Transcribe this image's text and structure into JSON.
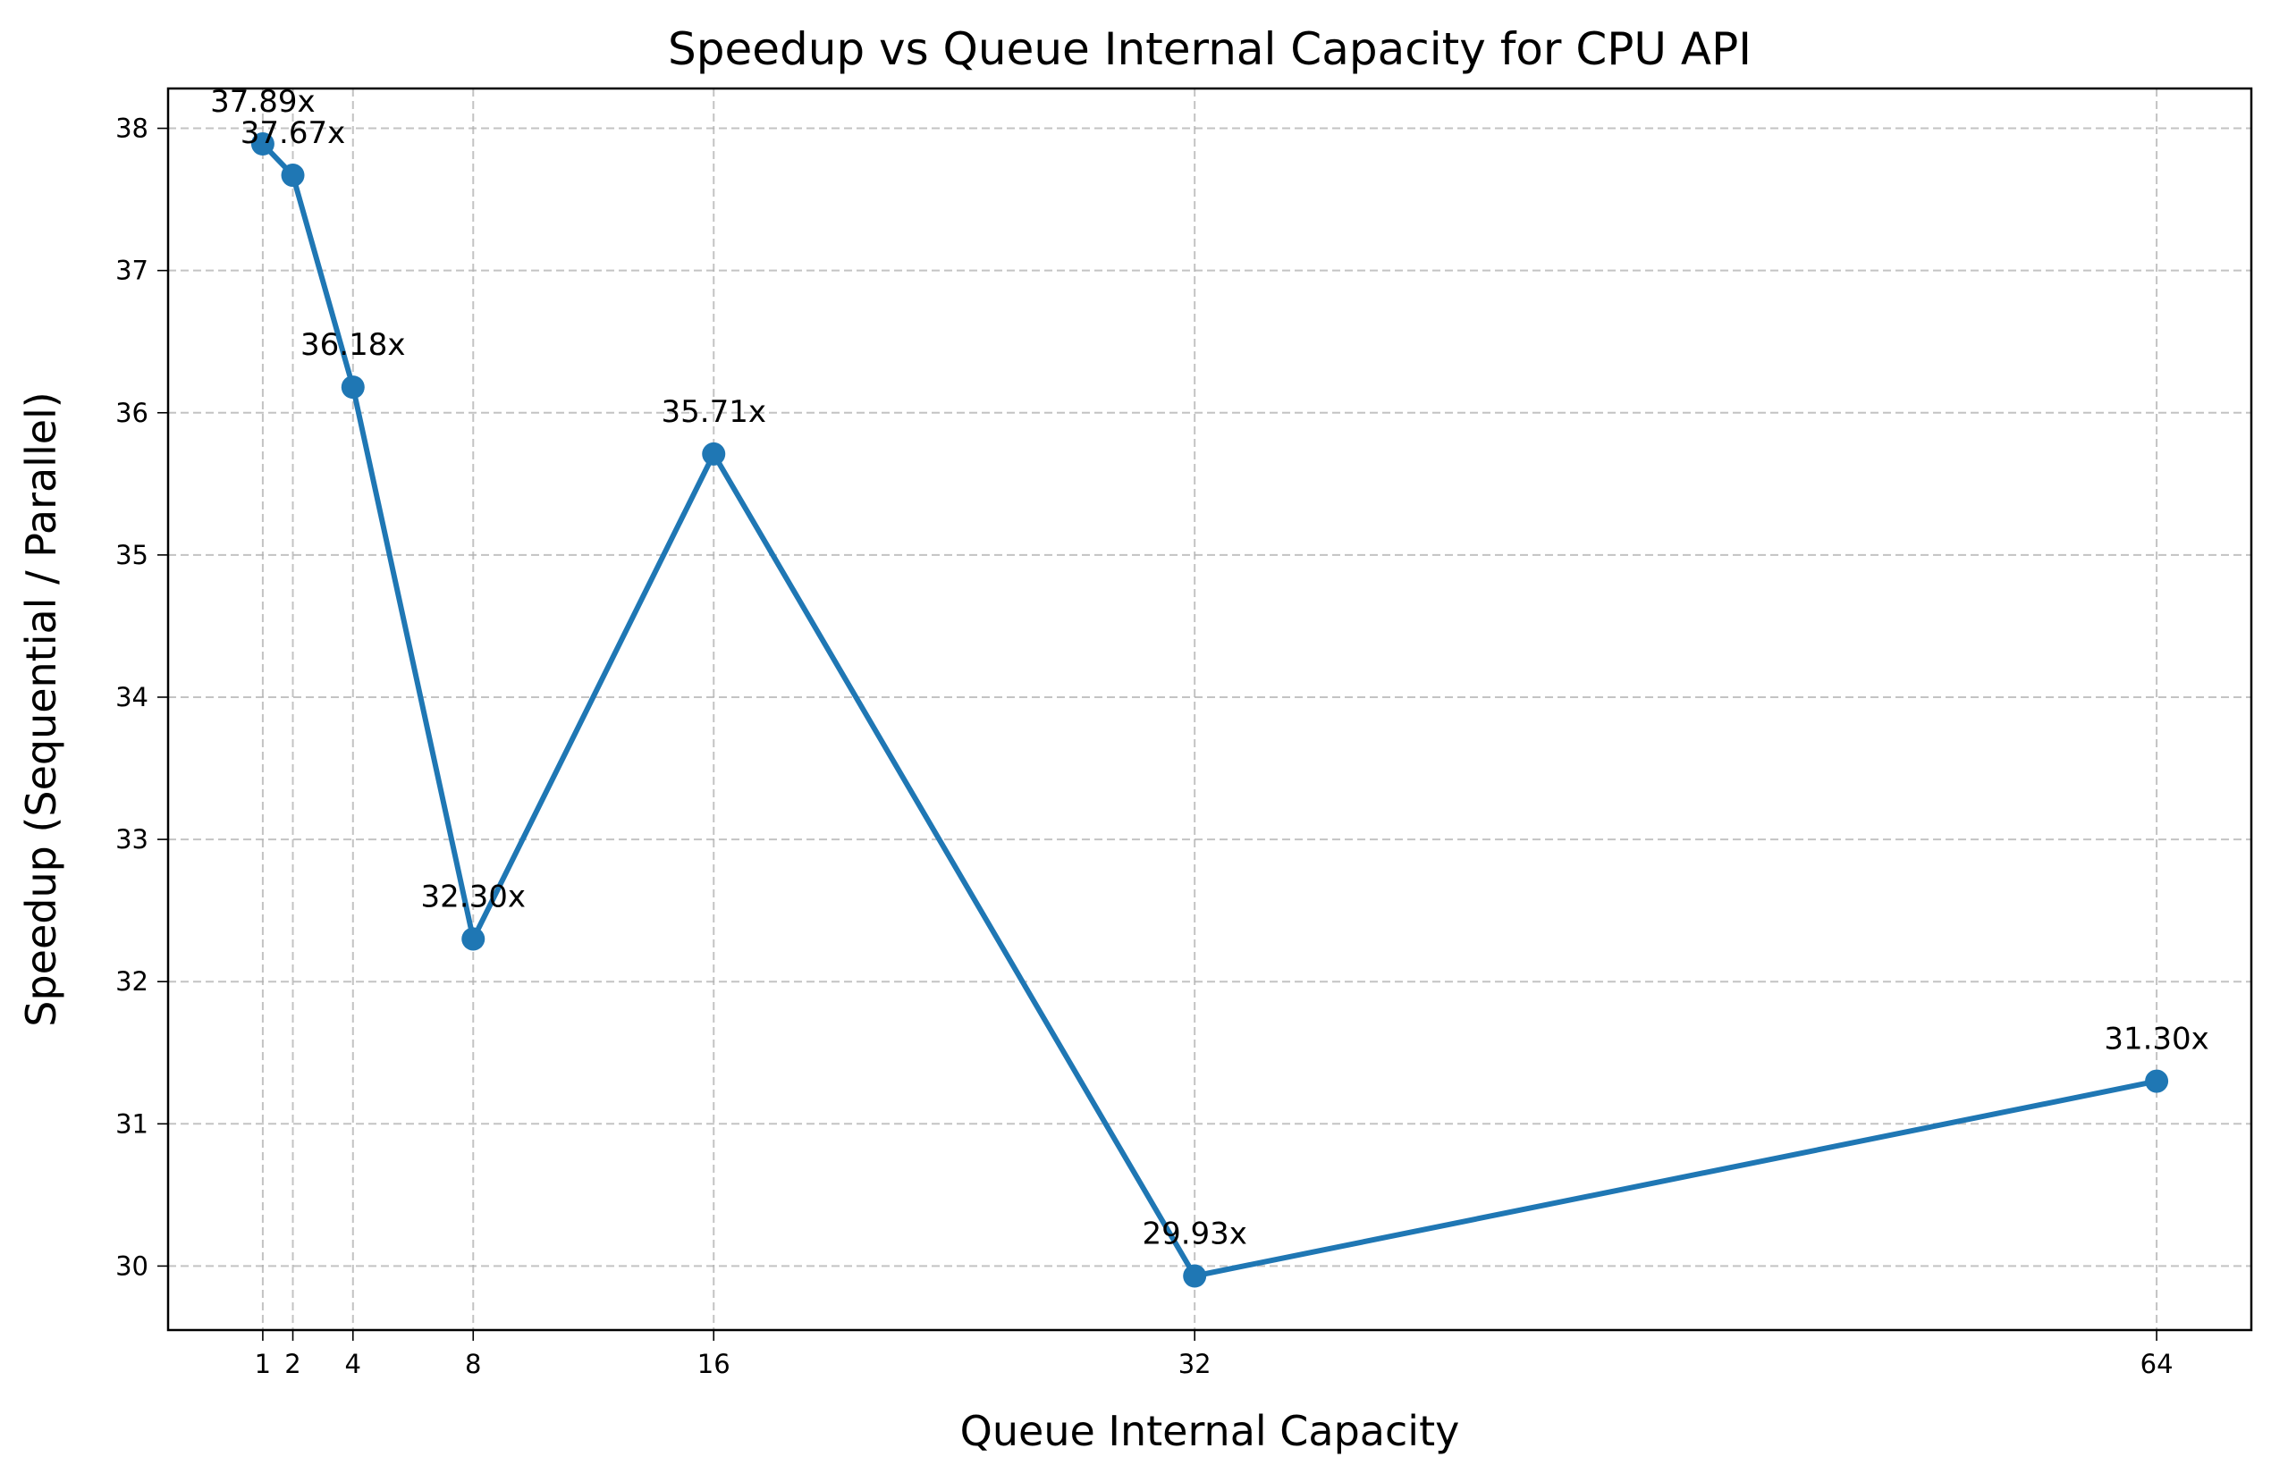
{
  "chart_data": {
    "type": "line",
    "title": "Speedup vs Queue Internal Capacity for CPU API",
    "xlabel": "Queue Internal Capacity",
    "ylabel": "Speedup (Sequential / Parallel)",
    "x": [
      1,
      2,
      4,
      8,
      16,
      32,
      64
    ],
    "x_tick_labels": [
      "1",
      "2",
      "4",
      "8",
      "16",
      "32",
      "64"
    ],
    "series": [
      {
        "values": [
          37.89,
          37.67,
          36.18,
          32.3,
          35.71,
          29.93,
          31.3
        ],
        "data_labels": [
          "37.89x",
          "37.67x",
          "36.18x",
          "32.30x",
          "35.71x",
          "29.93x",
          "31.30x"
        ],
        "color": "#1f77b4",
        "marker": "circle"
      }
    ],
    "xlim": [
      -2.15,
      67.15
    ],
    "ylim": [
      29.55,
      38.28
    ],
    "y_ticks": [
      30,
      31,
      32,
      33,
      34,
      35,
      36,
      37,
      38
    ],
    "y_tick_labels": [
      "30",
      "31",
      "32",
      "33",
      "34",
      "35",
      "36",
      "37",
      "38"
    ],
    "grid": true,
    "legend": "none"
  }
}
